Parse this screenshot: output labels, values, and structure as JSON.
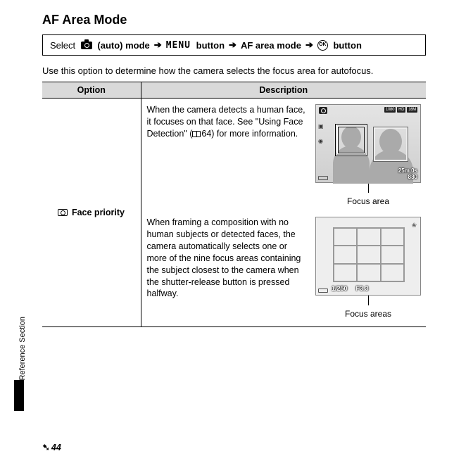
{
  "title": "AF Area Mode",
  "nav": {
    "select": "Select",
    "auto_mode": "(auto) mode",
    "menu": "MENU",
    "button1": "button",
    "af_area": "AF area mode",
    "ok": "OK",
    "button2": "button"
  },
  "intro": "Use this option to determine how the camera selects the focus area for autofocus.",
  "table": {
    "headers": {
      "option": "Option",
      "description": "Description"
    },
    "row1": {
      "option_label": "Face priority",
      "desc1_a": "When the camera detects a human face, it focuses on that face. See \"Using Face Detection\" (",
      "desc1_b": "64) for more information.",
      "fig1_caption": "Focus area",
      "lcd1": {
        "top_right": [
          "1080",
          "HD",
          "16M"
        ],
        "time": "25m 0s",
        "count": "880"
      },
      "desc2": "When framing a composition with no human subjects or detected faces, the camera automatically selects one or more of the nine focus areas containing the subject closest to the camera when the shutter-release button is pressed halfway.",
      "fig2_caption": "Focus areas",
      "lcd2": {
        "shutter": "1/250",
        "aperture": "F3.3"
      }
    }
  },
  "side_label": "Reference Section",
  "page_number": "44"
}
